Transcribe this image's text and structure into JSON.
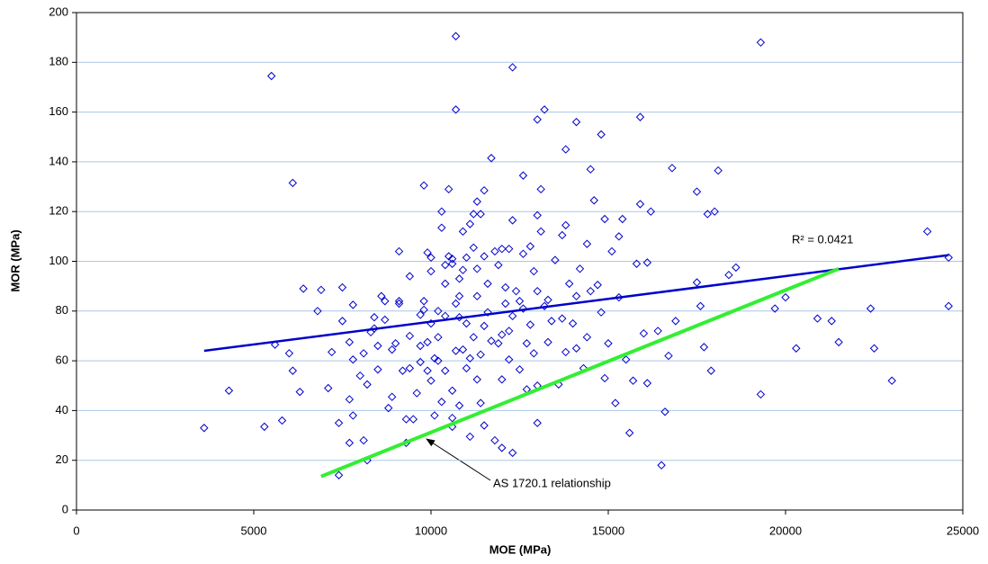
{
  "chart_data": {
    "type": "scatter",
    "xlabel": "MOE (MPa)",
    "ylabel": "MOR (MPa)",
    "xlim": [
      0,
      25000
    ],
    "xticks": [
      0,
      5000,
      10000,
      15000,
      20000,
      25000
    ],
    "ylim": [
      0,
      200
    ],
    "yticks": [
      0,
      20,
      40,
      60,
      80,
      100,
      120,
      140,
      160,
      180,
      200
    ],
    "grid": true,
    "series": [
      {
        "type": "scatter",
        "color": "#0000cc",
        "x": [
          3600,
          4300,
          5300,
          5500,
          5600,
          5800,
          6000,
          6100,
          6100,
          6300,
          6400,
          6800,
          6900,
          7100,
          7200,
          7400,
          7400,
          7500,
          7500,
          7700,
          7700,
          7700,
          7800,
          7800,
          7800,
          8000,
          8100,
          8100,
          8200,
          8200,
          8300,
          8400,
          8400,
          8500,
          8500,
          8600,
          8700,
          8700,
          8800,
          8900,
          8900,
          9000,
          9100,
          9100,
          9100,
          9200,
          9300,
          9300,
          9400,
          9400,
          9400,
          9500,
          9600,
          9700,
          9700,
          9700,
          9800,
          9800,
          9800,
          9900,
          9900,
          9900,
          10000,
          10000,
          10000,
          10000,
          10100,
          10100,
          10200,
          10200,
          10200,
          10300,
          10300,
          10300,
          10400,
          10400,
          10400,
          10400,
          10500,
          10500,
          10600,
          10600,
          10600,
          10600,
          10600,
          10700,
          10700,
          10700,
          10700,
          10800,
          10800,
          10800,
          10800,
          10900,
          10900,
          10900,
          11000,
          11000,
          11000,
          11100,
          11100,
          11100,
          11200,
          11200,
          11200,
          11300,
          11300,
          11300,
          11300,
          11400,
          11400,
          11400,
          11500,
          11500,
          11500,
          11500,
          11600,
          11600,
          11700,
          11700,
          11800,
          11800,
          11900,
          11900,
          12000,
          12000,
          12000,
          12000,
          12100,
          12100,
          12200,
          12200,
          12200,
          12300,
          12300,
          12300,
          12300,
          12400,
          12500,
          12500,
          12600,
          12600,
          12600,
          12700,
          12700,
          12800,
          12800,
          12900,
          12900,
          13000,
          13000,
          13000,
          13000,
          13000,
          13100,
          13100,
          13200,
          13200,
          13300,
          13300,
          13400,
          13500,
          13600,
          13700,
          13700,
          13800,
          13800,
          13800,
          13900,
          14000,
          14100,
          14100,
          14100,
          14200,
          14300,
          14400,
          14400,
          14500,
          14500,
          14600,
          14700,
          14800,
          14800,
          14900,
          14900,
          15000,
          15100,
          15200,
          15300,
          15300,
          15400,
          15500,
          15600,
          15700,
          15800,
          15900,
          15900,
          16000,
          16100,
          16100,
          16200,
          16400,
          16500,
          16600,
          16700,
          16800,
          16900,
          17500,
          17500,
          17600,
          17700,
          17800,
          17900,
          18000,
          18100,
          18400,
          18600,
          19300,
          19300,
          19700,
          20000,
          20300,
          20900,
          21300,
          21500,
          22400,
          22500,
          23000,
          24000,
          24600,
          24600
        ],
        "values": [
          33,
          48,
          33.5,
          174.5,
          66.5,
          36,
          63,
          56,
          131.5,
          47.5,
          89,
          80,
          88.5,
          49,
          63.5,
          35,
          14,
          89.5,
          76,
          27,
          44.5,
          67.5,
          82.5,
          60.5,
          38,
          54,
          63,
          28,
          20,
          50.5,
          71.5,
          73,
          77.5,
          66,
          56.5,
          86,
          84,
          76.5,
          41,
          64.5,
          45.5,
          67,
          84,
          83,
          104,
          56,
          27,
          36.5,
          57,
          94,
          70,
          36.5,
          47,
          59.5,
          66,
          78.5,
          80.5,
          130.5,
          84,
          103.5,
          67.5,
          56,
          75,
          96,
          101.5,
          52,
          38,
          61,
          60,
          80,
          69.5,
          43.5,
          113.5,
          120,
          91,
          98.5,
          56,
          78,
          129,
          102,
          99,
          101,
          48,
          33.5,
          37,
          190.5,
          161,
          83,
          64,
          93,
          86,
          77.5,
          42,
          96.5,
          112,
          64.5,
          101.5,
          75,
          57,
          115,
          61,
          29.5,
          119,
          105.5,
          69.5,
          124,
          97,
          86,
          52.5,
          119,
          62.5,
          43,
          128.5,
          102,
          74,
          34,
          91,
          79.5,
          68,
          141.5,
          104,
          28,
          67,
          98.5,
          105,
          70.5,
          52.5,
          25,
          83,
          89.5,
          72,
          60.5,
          105,
          178,
          116.5,
          78,
          23,
          88,
          84,
          56.5,
          134.5,
          103,
          81,
          67,
          48.5,
          106,
          74.5,
          96,
          63,
          157,
          118.5,
          88,
          35,
          50,
          129,
          112,
          161,
          82,
          84.5,
          67.5,
          76,
          100.5,
          50.5,
          110.5,
          77,
          145,
          114.5,
          63.5,
          91,
          75,
          156,
          86,
          65,
          97,
          57,
          69.5,
          107,
          137,
          88,
          124.5,
          90.5,
          151,
          79.5,
          117,
          53,
          67,
          104,
          43,
          110,
          85.5,
          117,
          60.5,
          31,
          52,
          99,
          158,
          123,
          71,
          99.5,
          51,
          120,
          72,
          18,
          39.5,
          62,
          137.5,
          76,
          128,
          91.5,
          82,
          65.5,
          119,
          56,
          120,
          136.5,
          94.5,
          97.5,
          188,
          46.5,
          81,
          85.5,
          65,
          77,
          76,
          67.5,
          81,
          65,
          52,
          112,
          101.5,
          82
        ]
      },
      {
        "type": "line",
        "color": "#0000cc",
        "label": "R² = 0.0421",
        "x": [
          3600,
          24600
        ],
        "values": [
          64,
          102.5
        ]
      },
      {
        "type": "line",
        "color": "#33ee33",
        "label": "AS 1720.1 relationship",
        "x": [
          6900,
          21500
        ],
        "values": [
          13.5,
          97
        ]
      }
    ]
  }
}
